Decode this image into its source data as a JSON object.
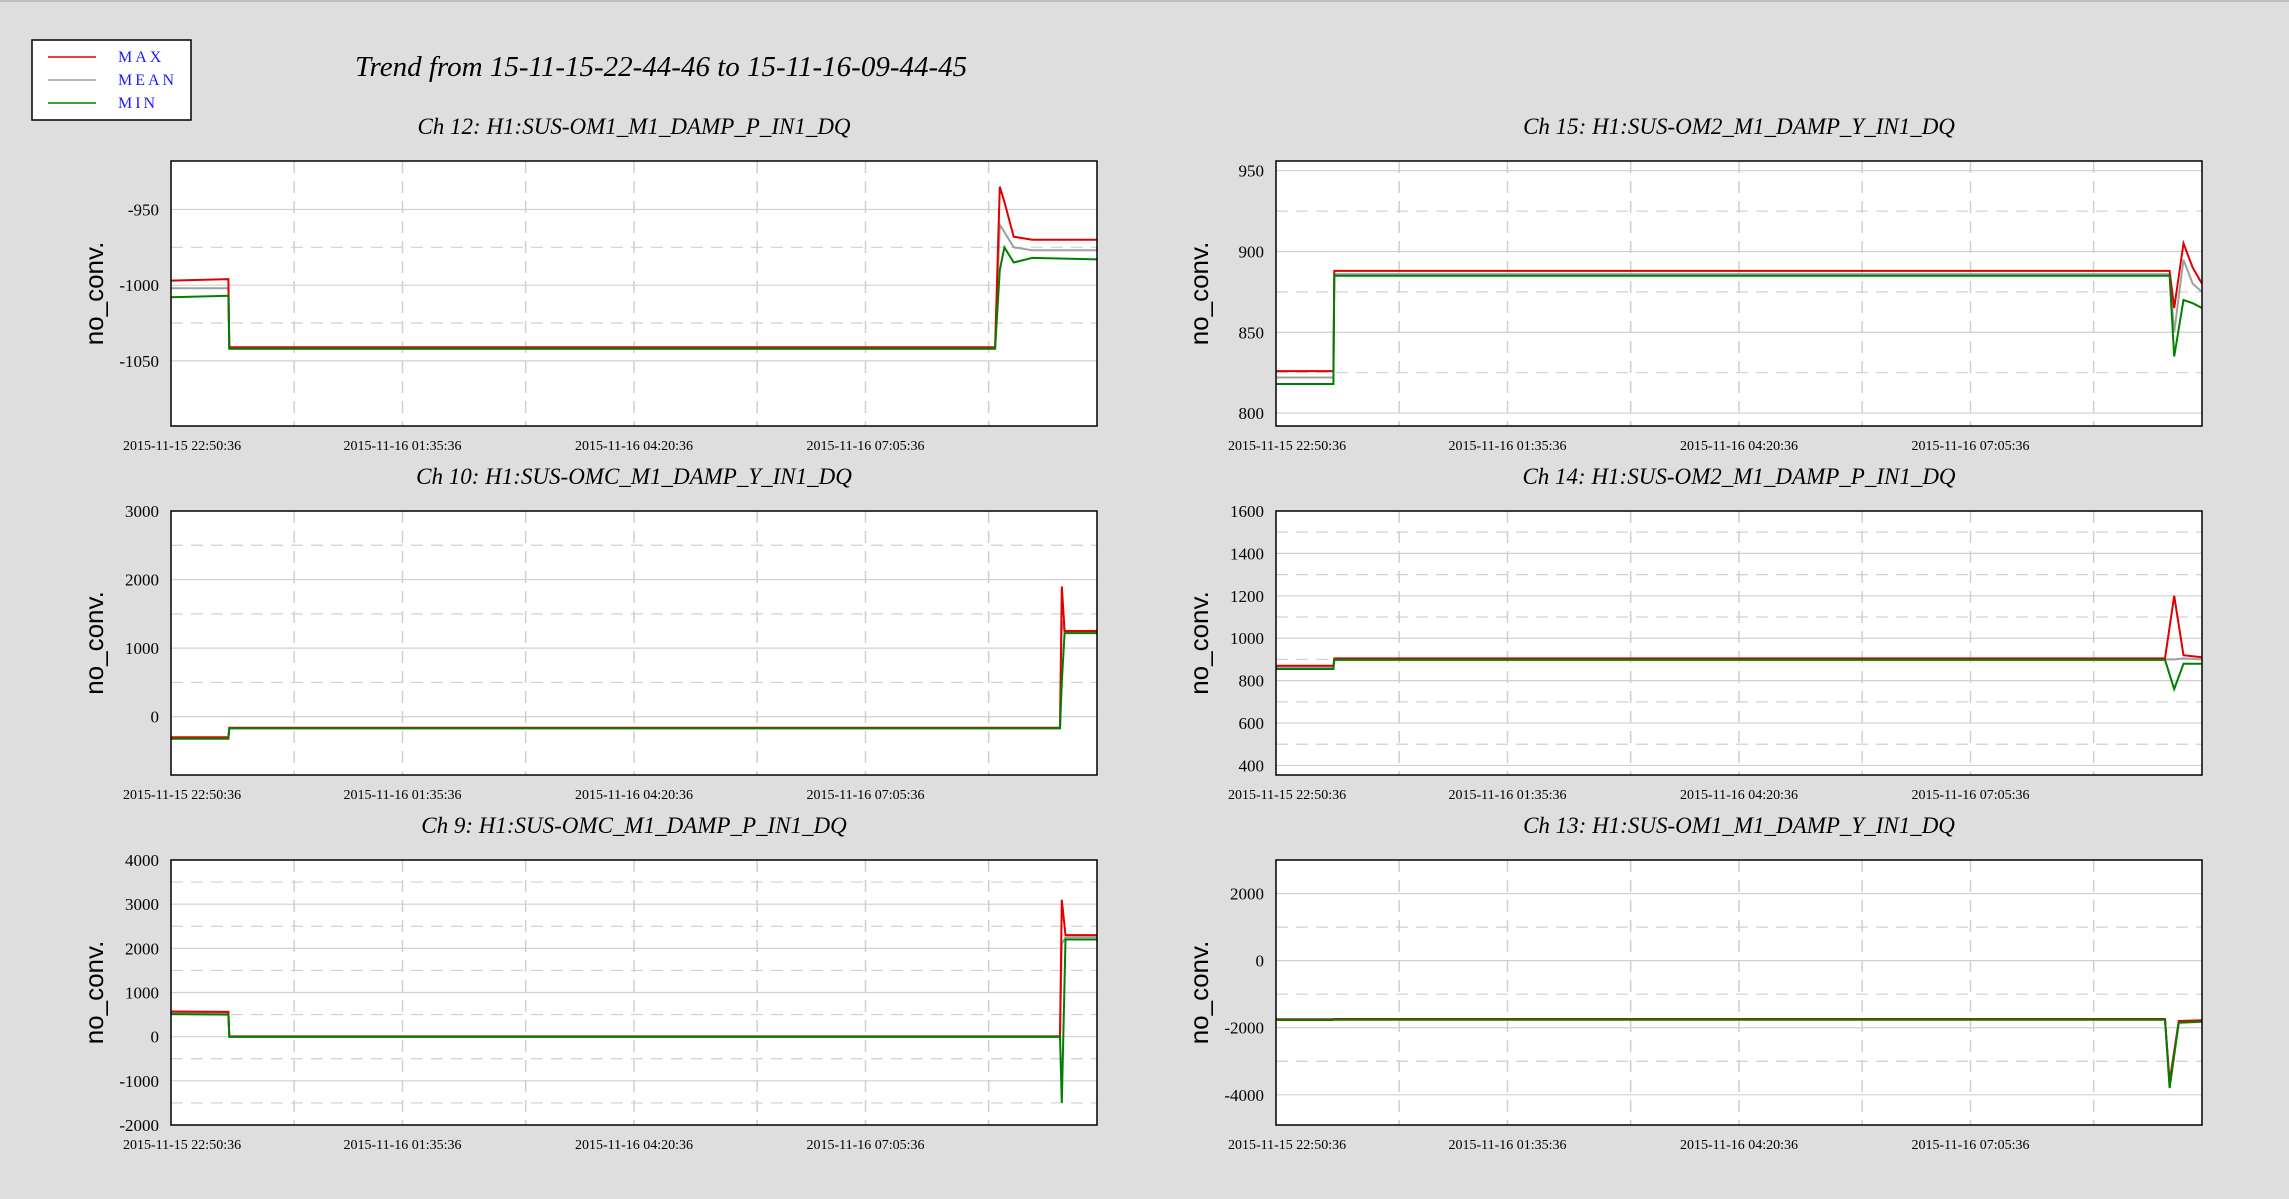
{
  "page": {
    "title": "Trend from 15-11-15-22-44-46 to 15-11-16-09-44-45"
  },
  "legend": {
    "entries": [
      {
        "label": "MAX",
        "color": "#e00000"
      },
      {
        "label": "MEAN",
        "color": "#a0a0a0"
      },
      {
        "label": "MIN",
        "color": "#008000"
      }
    ]
  },
  "colors": {
    "max": "#e00000",
    "mean": "#a0a0a0",
    "min": "#008000",
    "plot_bg": "#ffffff",
    "page_bg": "#dedede"
  },
  "chart_data": [
    {
      "type": "line",
      "title": "Ch 12: H1:SUS-OM1_M1_DAMP_P_IN1_DQ",
      "ylabel": "no_conv.",
      "ylim": [
        -1093,
        -918
      ],
      "yticks": [
        -950,
        -1000,
        -1050
      ],
      "xticks": [
        "2015-11-15 22:50:36",
        "2015-11-16 01:35:36",
        "2015-11-16 04:20:36",
        "2015-11-16 07:05:36"
      ],
      "series": [
        {
          "name": "MAX",
          "values": [
            [
              0,
              -997
            ],
            [
              0.062,
              -996
            ],
            [
              0.063,
              -1041
            ],
            [
              0.89,
              -1041
            ],
            [
              0.895,
              -935
            ],
            [
              0.9,
              -945
            ],
            [
              0.91,
              -968
            ],
            [
              0.93,
              -970
            ],
            [
              1,
              -970
            ]
          ]
        },
        {
          "name": "MEAN",
          "values": [
            [
              0,
              -1002
            ],
            [
              0.062,
              -1002
            ],
            [
              0.063,
              -1042
            ],
            [
              0.89,
              -1042
            ],
            [
              0.895,
              -960
            ],
            [
              0.9,
              -965
            ],
            [
              0.91,
              -975
            ],
            [
              0.93,
              -977
            ],
            [
              1,
              -977
            ]
          ]
        },
        {
          "name": "MIN",
          "values": [
            [
              0,
              -1008
            ],
            [
              0.062,
              -1007
            ],
            [
              0.063,
              -1042
            ],
            [
              0.89,
              -1042
            ],
            [
              0.895,
              -990
            ],
            [
              0.9,
              -975
            ],
            [
              0.91,
              -985
            ],
            [
              0.93,
              -982
            ],
            [
              1,
              -983
            ]
          ]
        }
      ]
    },
    {
      "type": "line",
      "title": "Ch 15: H1:SUS-OM2_M1_DAMP_Y_IN1_DQ",
      "ylabel": "no_conv.",
      "ylim": [
        792,
        956
      ],
      "yticks": [
        950,
        900,
        850,
        800
      ],
      "xticks": [
        "2015-11-15 22:50:36",
        "2015-11-16 01:35:36",
        "2015-11-16 04:20:36",
        "2015-11-16 07:05:36"
      ],
      "series": [
        {
          "name": "MAX",
          "values": [
            [
              0,
              826
            ],
            [
              0.062,
              826
            ],
            [
              0.063,
              888
            ],
            [
              0.965,
              888
            ],
            [
              0.97,
              865
            ],
            [
              0.98,
              905
            ],
            [
              0.99,
              890
            ],
            [
              1,
              880
            ]
          ]
        },
        {
          "name": "MEAN",
          "values": [
            [
              0,
              822
            ],
            [
              0.062,
              822
            ],
            [
              0.063,
              886
            ],
            [
              0.965,
              886
            ],
            [
              0.97,
              850
            ],
            [
              0.98,
              895
            ],
            [
              0.99,
              880
            ],
            [
              1,
              875
            ]
          ]
        },
        {
          "name": "MIN",
          "values": [
            [
              0,
              818
            ],
            [
              0.062,
              818
            ],
            [
              0.063,
              885
            ],
            [
              0.965,
              885
            ],
            [
              0.97,
              835
            ],
            [
              0.98,
              870
            ],
            [
              0.99,
              868
            ],
            [
              1,
              865
            ]
          ]
        }
      ]
    },
    {
      "type": "line",
      "title": "Ch 10: H1:SUS-OMC_M1_DAMP_Y_IN1_DQ",
      "ylabel": "no_conv.",
      "ylim": [
        -850,
        3000
      ],
      "yticks": [
        3000,
        2000,
        1000,
        0
      ],
      "xticks": [
        "2015-11-15 22:50:36",
        "2015-11-16 01:35:36",
        "2015-11-16 04:20:36",
        "2015-11-16 07:05:36"
      ],
      "series": [
        {
          "name": "MAX",
          "values": [
            [
              0,
              -300
            ],
            [
              0.062,
              -300
            ],
            [
              0.063,
              -160
            ],
            [
              0.96,
              -160
            ],
            [
              0.962,
              1900
            ],
            [
              0.965,
              1250
            ],
            [
              1,
              1250
            ]
          ]
        },
        {
          "name": "MEAN",
          "values": [
            [
              0,
              -310
            ],
            [
              0.062,
              -310
            ],
            [
              0.063,
              -165
            ],
            [
              0.96,
              -165
            ],
            [
              0.962,
              1400
            ],
            [
              0.965,
              1230
            ],
            [
              1,
              1230
            ]
          ]
        },
        {
          "name": "MIN",
          "values": [
            [
              0,
              -320
            ],
            [
              0.062,
              -320
            ],
            [
              0.063,
              -170
            ],
            [
              0.96,
              -170
            ],
            [
              0.962,
              500
            ],
            [
              0.965,
              1220
            ],
            [
              1,
              1220
            ]
          ]
        }
      ]
    },
    {
      "type": "line",
      "title": "Ch 14: H1:SUS-OM2_M1_DAMP_P_IN1_DQ",
      "ylabel": "no_conv.",
      "ylim": [
        355,
        1600
      ],
      "yticks": [
        1600,
        1400,
        1200,
        1000,
        800,
        600,
        400
      ],
      "xticks": [
        "2015-11-15 22:50:36",
        "2015-11-16 01:35:36",
        "2015-11-16 04:20:36",
        "2015-11-16 07:05:36"
      ],
      "series": [
        {
          "name": "MAX",
          "values": [
            [
              0,
              870
            ],
            [
              0.062,
              870
            ],
            [
              0.063,
              905
            ],
            [
              0.96,
              905
            ],
            [
              0.97,
              1200
            ],
            [
              0.98,
              920
            ],
            [
              1,
              910
            ]
          ]
        },
        {
          "name": "MEAN",
          "values": [
            [
              0,
              862
            ],
            [
              0.062,
              862
            ],
            [
              0.063,
              900
            ],
            [
              0.96,
              900
            ],
            [
              0.97,
              900
            ],
            [
              0.98,
              905
            ],
            [
              1,
              900
            ]
          ]
        },
        {
          "name": "MIN",
          "values": [
            [
              0,
              855
            ],
            [
              0.062,
              855
            ],
            [
              0.063,
              898
            ],
            [
              0.96,
              898
            ],
            [
              0.97,
              760
            ],
            [
              0.98,
              880
            ],
            [
              1,
              880
            ]
          ]
        }
      ]
    },
    {
      "type": "line",
      "title": "Ch 9: H1:SUS-OMC_M1_DAMP_P_IN1_DQ",
      "ylabel": "no_conv.",
      "ylim": [
        -2000,
        4000
      ],
      "yticks": [
        4000,
        3000,
        2000,
        1000,
        0,
        -1000,
        -2000
      ],
      "xticks": [
        "2015-11-15 22:50:36",
        "2015-11-16 01:35:36",
        "2015-11-16 04:20:36",
        "2015-11-16 07:05:36"
      ],
      "series": [
        {
          "name": "MAX",
          "values": [
            [
              0,
              570
            ],
            [
              0.062,
              560
            ],
            [
              0.063,
              5
            ],
            [
              0.96,
              5
            ],
            [
              0.962,
              3100
            ],
            [
              0.966,
              2300
            ],
            [
              1,
              2300
            ]
          ]
        },
        {
          "name": "MEAN",
          "values": [
            [
              0,
              540
            ],
            [
              0.062,
              530
            ],
            [
              0.063,
              0
            ],
            [
              0.96,
              0
            ],
            [
              0.962,
              2100
            ],
            [
              0.966,
              2250
            ],
            [
              1,
              2250
            ]
          ]
        },
        {
          "name": "MIN",
          "values": [
            [
              0,
              510
            ],
            [
              0.062,
              500
            ],
            [
              0.063,
              -5
            ],
            [
              0.96,
              -5
            ],
            [
              0.962,
              -1500
            ],
            [
              0.966,
              2200
            ],
            [
              1,
              2200
            ]
          ]
        }
      ]
    },
    {
      "type": "line",
      "title": "Ch 13: H1:SUS-OM1_M1_DAMP_Y_IN1_DQ",
      "ylabel": "no_conv.",
      "ylim": [
        -4900,
        3000
      ],
      "yticks": [
        2000,
        0,
        -2000,
        -4000
      ],
      "xticks": [
        "2015-11-15 22:50:36",
        "2015-11-16 01:35:36",
        "2015-11-16 04:20:36",
        "2015-11-16 07:05:36"
      ],
      "series": [
        {
          "name": "MAX",
          "values": [
            [
              0,
              -1750
            ],
            [
              0.062,
              -1750
            ],
            [
              0.063,
              -1740
            ],
            [
              0.96,
              -1740
            ],
            [
              0.965,
              -3600
            ],
            [
              0.975,
              -1800
            ],
            [
              1,
              -1780
            ]
          ]
        },
        {
          "name": "MEAN",
          "values": [
            [
              0,
              -1760
            ],
            [
              0.062,
              -1760
            ],
            [
              0.063,
              -1750
            ],
            [
              0.96,
              -1750
            ],
            [
              0.965,
              -3700
            ],
            [
              0.975,
              -1820
            ],
            [
              1,
              -1800
            ]
          ]
        },
        {
          "name": "MIN",
          "values": [
            [
              0,
              -1770
            ],
            [
              0.062,
              -1770
            ],
            [
              0.063,
              -1760
            ],
            [
              0.96,
              -1760
            ],
            [
              0.965,
              -3800
            ],
            [
              0.975,
              -1850
            ],
            [
              1,
              -1820
            ]
          ]
        }
      ]
    }
  ]
}
